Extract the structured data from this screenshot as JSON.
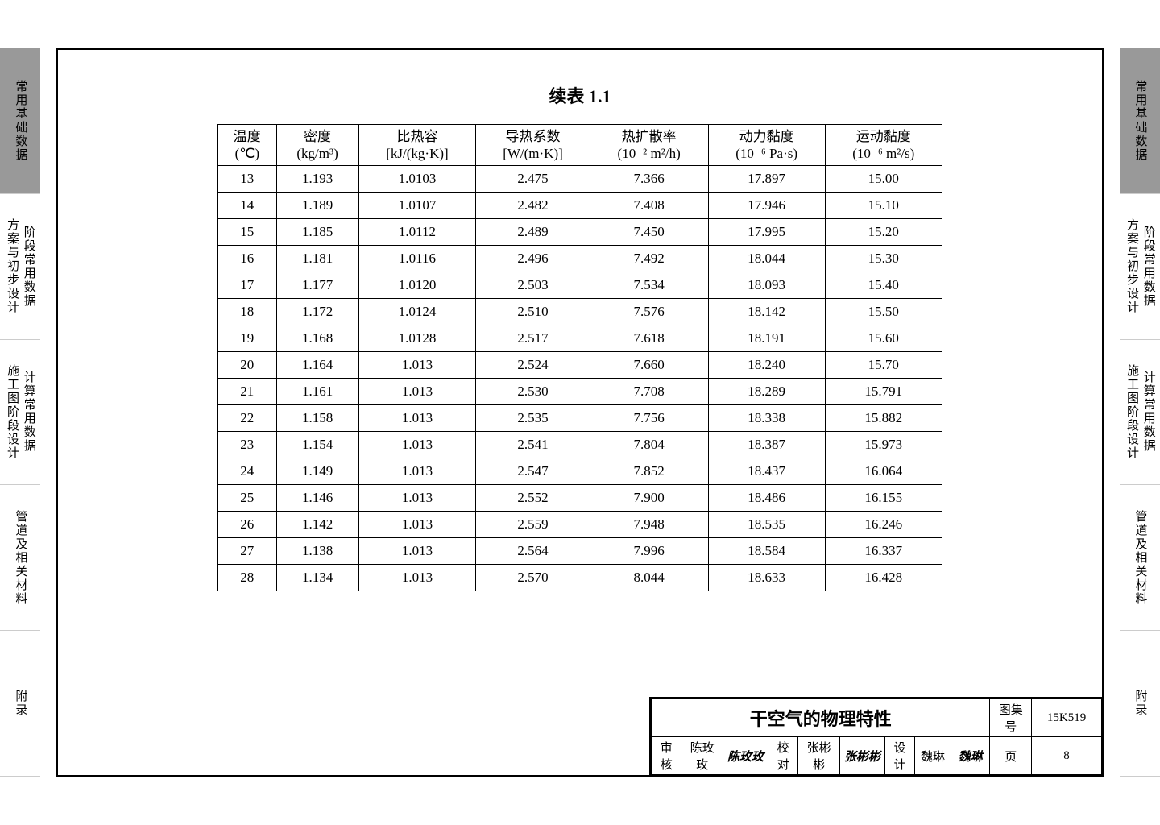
{
  "caption": "续表 1.1",
  "side_tabs": [
    {
      "lines": [
        "常用基础数据"
      ],
      "active": true
    },
    {
      "lines": [
        "方案与初步设计",
        "阶段常用数据"
      ],
      "active": false
    },
    {
      "lines": [
        "施工图阶段设计",
        "计算常用数据"
      ],
      "active": false
    },
    {
      "lines": [
        "管道及相关材料"
      ],
      "active": false
    },
    {
      "lines": [
        "附录"
      ],
      "active": false
    }
  ],
  "right_tabs": [
    {
      "lines": [
        "常用基础数据"
      ],
      "active": true
    },
    {
      "lines": [
        "方案与初步设计",
        "阶段常用数据"
      ],
      "active": false
    },
    {
      "lines": [
        "施工图阶段设计",
        "计算常用数据"
      ],
      "active": false
    },
    {
      "lines": [
        "管道及相关材料"
      ],
      "active": false
    },
    {
      "lines": [
        "附录"
      ],
      "active": false
    }
  ],
  "columns": [
    {
      "l1": "温度",
      "l2": "(℃)"
    },
    {
      "l1": "密度",
      "l2": "(kg/m³)"
    },
    {
      "l1": "比热容",
      "l2": "[kJ/(kg·K)]"
    },
    {
      "l1": "导热系数",
      "l2": "[W/(m·K)]"
    },
    {
      "l1": "热扩散率",
      "l2": "(10⁻² m²/h)"
    },
    {
      "l1": "动力黏度",
      "l2": "(10⁻⁶ Pa·s)"
    },
    {
      "l1": "运动黏度",
      "l2": "(10⁻⁶ m²/s)"
    }
  ],
  "rows": [
    [
      "13",
      "1.193",
      "1.0103",
      "2.475",
      "7.366",
      "17.897",
      "15.00"
    ],
    [
      "14",
      "1.189",
      "1.0107",
      "2.482",
      "7.408",
      "17.946",
      "15.10"
    ],
    [
      "15",
      "1.185",
      "1.0112",
      "2.489",
      "7.450",
      "17.995",
      "15.20"
    ],
    [
      "16",
      "1.181",
      "1.0116",
      "2.496",
      "7.492",
      "18.044",
      "15.30"
    ],
    [
      "17",
      "1.177",
      "1.0120",
      "2.503",
      "7.534",
      "18.093",
      "15.40"
    ],
    [
      "18",
      "1.172",
      "1.0124",
      "2.510",
      "7.576",
      "18.142",
      "15.50"
    ],
    [
      "19",
      "1.168",
      "1.0128",
      "2.517",
      "7.618",
      "18.191",
      "15.60"
    ],
    [
      "20",
      "1.164",
      "1.013",
      "2.524",
      "7.660",
      "18.240",
      "15.70"
    ],
    [
      "21",
      "1.161",
      "1.013",
      "2.530",
      "7.708",
      "18.289",
      "15.791"
    ],
    [
      "22",
      "1.158",
      "1.013",
      "2.535",
      "7.756",
      "18.338",
      "15.882"
    ],
    [
      "23",
      "1.154",
      "1.013",
      "2.541",
      "7.804",
      "18.387",
      "15.973"
    ],
    [
      "24",
      "1.149",
      "1.013",
      "2.547",
      "7.852",
      "18.437",
      "16.064"
    ],
    [
      "25",
      "1.146",
      "1.013",
      "2.552",
      "7.900",
      "18.486",
      "16.155"
    ],
    [
      "26",
      "1.142",
      "1.013",
      "2.559",
      "7.948",
      "18.535",
      "16.246"
    ],
    [
      "27",
      "1.138",
      "1.013",
      "2.564",
      "7.996",
      "18.584",
      "16.337"
    ],
    [
      "28",
      "1.134",
      "1.013",
      "2.570",
      "8.044",
      "18.633",
      "16.428"
    ]
  ],
  "titleblock": {
    "title": "干空气的物理特性",
    "album_label": "图集号",
    "album_no": "15K519",
    "page_label": "页",
    "page_no": "8",
    "roles": {
      "review": "审核",
      "review_name": "陈玫玫",
      "review_sig": "陈玫玫",
      "check": "校对",
      "check_name": "张彬彬",
      "check_sig": "张彬彬",
      "design": "设计",
      "design_name": "魏琳",
      "design_sig": "魏琳"
    }
  },
  "style": {
    "page_bg": "#ffffff",
    "active_tab_bg": "#999999",
    "border_color": "#000000",
    "font_main": "SimSun",
    "table_fontsize": 17,
    "title_fontsize": 22
  }
}
